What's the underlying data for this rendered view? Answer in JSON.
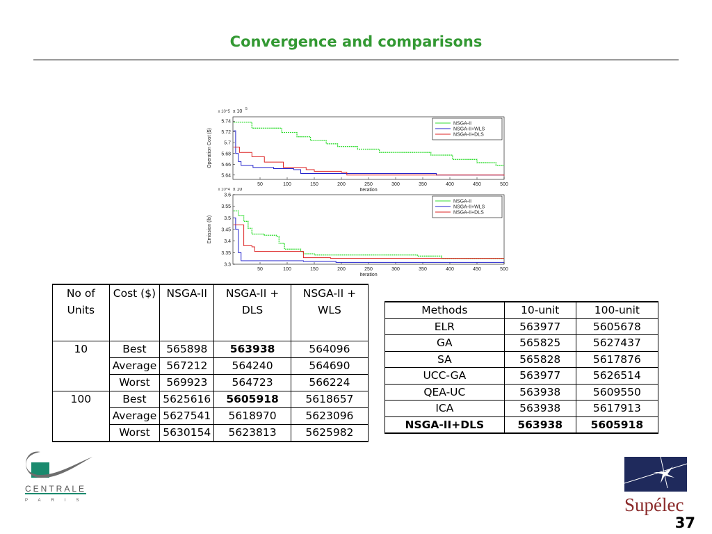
{
  "title": "Convergence and comparisons",
  "page_number": "37",
  "logos": {
    "left": "CENTRALE PARIS",
    "right": "Supélec"
  },
  "chart_data": [
    {
      "type": "line",
      "ylabel": "Operation Cost ($)",
      "xlabel": "Iteration",
      "multiplier": "x 10^5",
      "mult_base": "x 10",
      "mult_exp": "5",
      "xlim": [
        0,
        500
      ],
      "ylim": [
        5.632,
        5.748
      ],
      "xticks": [
        50,
        100,
        150,
        200,
        250,
        300,
        350,
        400,
        450,
        500
      ],
      "yticks": [
        5.64,
        5.66,
        5.68,
        5.7,
        5.72,
        5.74
      ],
      "ytick_labels": [
        "5.64",
        "5.66",
        "5.68",
        "5.7",
        "5.72",
        "5.74"
      ],
      "legend": "top-right",
      "series": [
        {
          "name": "NSGA-II",
          "color": "#33dd33",
          "points": [
            [
              1,
              5.738
            ],
            [
              35,
              5.727
            ],
            [
              90,
              5.719
            ],
            [
              118,
              5.711
            ],
            [
              143,
              5.704
            ],
            [
              172,
              5.698
            ],
            [
              193,
              5.693
            ],
            [
              230,
              5.688
            ],
            [
              270,
              5.682
            ],
            [
              365,
              5.677
            ],
            [
              405,
              5.669
            ],
            [
              450,
              5.663
            ],
            [
              485,
              5.658
            ],
            [
              500,
              5.658
            ]
          ]
        },
        {
          "name": "NSGA-II+WLS",
          "color": "#2222cc",
          "points": [
            [
              1,
              5.722
            ],
            [
              5,
              5.68
            ],
            [
              10,
              5.665
            ],
            [
              15,
              5.658
            ],
            [
              37,
              5.654
            ],
            [
              75,
              5.652
            ],
            [
              112,
              5.65
            ],
            [
              125,
              5.643
            ],
            [
              375,
              5.64
            ],
            [
              500,
              5.64
            ]
          ]
        },
        {
          "name": "NSGA-II+DLS",
          "color": "#dd2222",
          "points": [
            [
              1,
              5.692
            ],
            [
              12,
              5.682
            ],
            [
              35,
              5.674
            ],
            [
              58,
              5.664
            ],
            [
              93,
              5.654
            ],
            [
              135,
              5.65
            ],
            [
              150,
              5.647
            ],
            [
              200,
              5.645
            ],
            [
              210,
              5.64
            ],
            [
              500,
              5.639
            ]
          ]
        }
      ]
    },
    {
      "type": "line",
      "ylabel": "Emission (lb)",
      "xlabel": "Iteration",
      "multiplier": "x 10^4",
      "mult_base": "x 10",
      "mult_exp": "4",
      "xlim": [
        0,
        500
      ],
      "ylim": [
        3.3,
        3.6
      ],
      "xticks": [
        50,
        100,
        150,
        200,
        250,
        300,
        350,
        400,
        450,
        500
      ],
      "yticks": [
        3.3,
        3.35,
        3.4,
        3.45,
        3.5,
        3.55,
        3.6
      ],
      "ytick_labels": [
        "3.3",
        "3.35",
        "3.4",
        "3.45",
        "3.5",
        "3.55",
        "3.6"
      ],
      "legend": "top-right",
      "series": [
        {
          "name": "NSGA-II",
          "color": "#33dd33",
          "points": [
            [
              1,
              3.53
            ],
            [
              10,
              3.51
            ],
            [
              20,
              3.485
            ],
            [
              28,
              3.455
            ],
            [
              35,
              3.43
            ],
            [
              58,
              3.425
            ],
            [
              80,
              3.42
            ],
            [
              85,
              3.39
            ],
            [
              95,
              3.365
            ],
            [
              125,
              3.355
            ],
            [
              130,
              3.345
            ],
            [
              150,
              3.34
            ],
            [
              340,
              3.335
            ],
            [
              385,
              3.325
            ],
            [
              500,
              3.325
            ]
          ]
        },
        {
          "name": "NSGA-II+WLS",
          "color": "#2222cc",
          "points": [
            [
              1,
              3.5
            ],
            [
              5,
              3.45
            ],
            [
              10,
              3.35
            ],
            [
              15,
              3.315
            ],
            [
              130,
              3.312
            ],
            [
              190,
              3.308
            ],
            [
              500,
              3.308
            ]
          ]
        },
        {
          "name": "NSGA-II+DLS",
          "color": "#dd2222",
          "points": [
            [
              1,
              3.47
            ],
            [
              15,
              3.47
            ],
            [
              20,
              3.38
            ],
            [
              35,
              3.375
            ],
            [
              40,
              3.355
            ],
            [
              127,
              3.355
            ],
            [
              130,
              3.328
            ],
            [
              180,
              3.325
            ],
            [
              500,
              3.325
            ]
          ]
        }
      ]
    }
  ],
  "table1": {
    "headers": [
      "No of Units",
      "Cost ($)",
      "NSGA-II",
      "NSGA-II + DLS",
      "NSGA-II + WLS"
    ],
    "rows": [
      [
        "10",
        "Best",
        "565898",
        "563938",
        "564096"
      ],
      [
        "",
        "Average",
        "567212",
        "564240",
        "564690"
      ],
      [
        "",
        "Worst",
        "569923",
        "564723",
        "566224"
      ],
      [
        "100",
        "Best",
        "5625616",
        "5605918",
        "5618657"
      ],
      [
        "",
        "Average",
        "5627541",
        "5618970",
        "5623096"
      ],
      [
        "",
        "Worst",
        "5630154",
        "5623813",
        "5625982"
      ]
    ]
  },
  "table2": {
    "headers": [
      "Methods",
      "10-unit",
      "100-unit"
    ],
    "rows": [
      [
        "ELR",
        "563977",
        "5605678"
      ],
      [
        "GA",
        "565825",
        "5627437"
      ],
      [
        "SA",
        "565828",
        "5617876"
      ],
      [
        "UCC-GA",
        "563977",
        "5626514"
      ],
      [
        "QEA-UC",
        "563938",
        "5609550"
      ],
      [
        "ICA",
        "563938",
        "5617913"
      ],
      [
        "NSGA-II+DLS",
        "563938",
        "5605918"
      ]
    ]
  }
}
